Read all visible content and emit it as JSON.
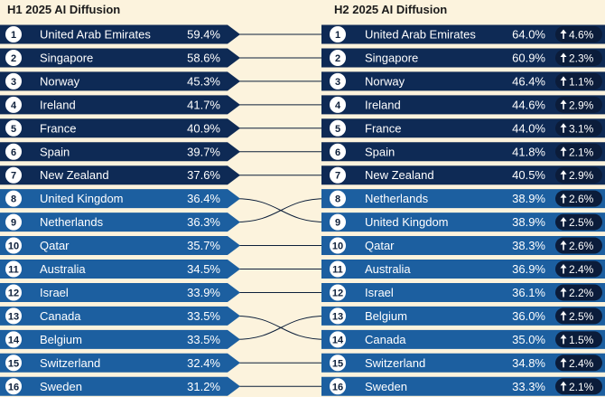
{
  "left_panel": {
    "title": "H1 2025 AI Diffusion"
  },
  "right_panel": {
    "title": "H2 2025 AI Diffusion"
  },
  "colors": {
    "background": "#fcf3dd",
    "dark_row": "#0e2a55",
    "light_row": "#1c5fa0",
    "rank_circle": "#ffffff",
    "badge": "#0b1c3a",
    "connector": "#0d1f3a"
  },
  "icons": {
    "change_badge": "up-arrow-icon"
  },
  "chart_data": {
    "type": "table",
    "left": [
      {
        "rank": "1",
        "country": "United Arab Emirates",
        "value": "59.4%"
      },
      {
        "rank": "2",
        "country": "Singapore",
        "value": "58.6%"
      },
      {
        "rank": "3",
        "country": "Norway",
        "value": "45.3%"
      },
      {
        "rank": "4",
        "country": "Ireland",
        "value": "41.7%"
      },
      {
        "rank": "5",
        "country": "France",
        "value": "40.9%"
      },
      {
        "rank": "6",
        "country": "Spain",
        "value": "39.7%"
      },
      {
        "rank": "7",
        "country": "New Zealand",
        "value": "37.6%"
      },
      {
        "rank": "8",
        "country": "United Kingdom",
        "value": "36.4%"
      },
      {
        "rank": "9",
        "country": "Netherlands",
        "value": "36.3%"
      },
      {
        "rank": "10",
        "country": "Qatar",
        "value": "35.7%"
      },
      {
        "rank": "11",
        "country": "Australia",
        "value": "34.5%"
      },
      {
        "rank": "12",
        "country": "Israel",
        "value": "33.9%"
      },
      {
        "rank": "13",
        "country": "Canada",
        "value": "33.5%"
      },
      {
        "rank": "14",
        "country": "Belgium",
        "value": "33.5%"
      },
      {
        "rank": "15",
        "country": "Switzerland",
        "value": "32.4%"
      },
      {
        "rank": "16",
        "country": "Sweden",
        "value": "31.2%"
      }
    ],
    "right": [
      {
        "rank": "1",
        "country": "United Arab Emirates",
        "value": "64.0%",
        "change": "4.6%"
      },
      {
        "rank": "2",
        "country": "Singapore",
        "value": "60.9%",
        "change": "2.3%"
      },
      {
        "rank": "3",
        "country": "Norway",
        "value": "46.4%",
        "change": "1.1%"
      },
      {
        "rank": "4",
        "country": "Ireland",
        "value": "44.6%",
        "change": "2.9%"
      },
      {
        "rank": "5",
        "country": "France",
        "value": "44.0%",
        "change": "3.1%"
      },
      {
        "rank": "6",
        "country": "Spain",
        "value": "41.8%",
        "change": "2.1%"
      },
      {
        "rank": "7",
        "country": "New Zealand",
        "value": "40.5%",
        "change": "2.9%"
      },
      {
        "rank": "8",
        "country": "Netherlands",
        "value": "38.9%",
        "change": "2.6%"
      },
      {
        "rank": "9",
        "country": "United Kingdom",
        "value": "38.9%",
        "change": "2.5%"
      },
      {
        "rank": "10",
        "country": "Qatar",
        "value": "38.3%",
        "change": "2.6%"
      },
      {
        "rank": "11",
        "country": "Australia",
        "value": "36.9%",
        "change": "2.4%"
      },
      {
        "rank": "12",
        "country": "Israel",
        "value": "36.1%",
        "change": "2.2%"
      },
      {
        "rank": "13",
        "country": "Belgium",
        "value": "36.0%",
        "change": "2.5%"
      },
      {
        "rank": "14",
        "country": "Canada",
        "value": "35.0%",
        "change": "1.5%"
      },
      {
        "rank": "15",
        "country": "Switzerland",
        "value": "34.8%",
        "change": "2.4%"
      },
      {
        "rank": "16",
        "country": "Sweden",
        "value": "33.3%",
        "change": "2.1%"
      }
    ]
  }
}
